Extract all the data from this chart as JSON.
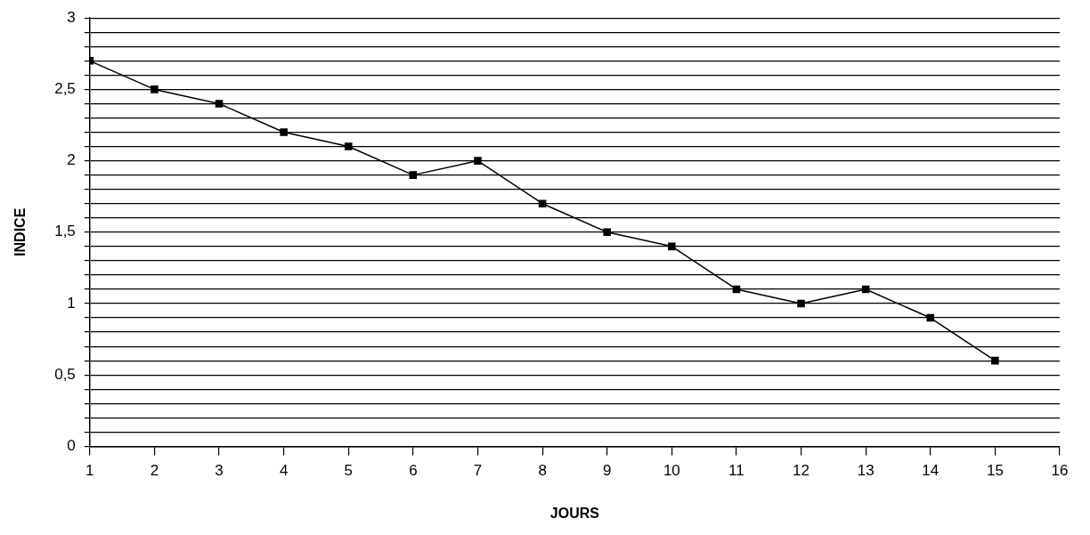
{
  "chart_data": {
    "type": "line",
    "xlabel": "JOURS",
    "ylabel": "INDICE",
    "x": [
      1,
      2,
      3,
      4,
      5,
      6,
      7,
      8,
      9,
      10,
      11,
      12,
      13,
      14,
      15
    ],
    "series": [
      {
        "color": "#000000",
        "values": [
          2.7,
          2.5,
          2.4,
          2.2,
          2.1,
          1.9,
          2.0,
          1.7,
          1.5,
          1.4,
          1.1,
          1.0,
          1.1,
          0.9,
          0.6
        ]
      }
    ],
    "xlim": [
      1,
      16
    ],
    "xticks": [
      1,
      2,
      3,
      4,
      5,
      6,
      7,
      8,
      9,
      10,
      11,
      12,
      13,
      14,
      15,
      16
    ],
    "ylim": [
      0,
      3
    ],
    "yticks": [
      0,
      {
        "value": 0.1,
        "label": null
      },
      {
        "value": 0.2,
        "label": null
      },
      {
        "value": 0.3,
        "label": null
      },
      {
        "value": 0.4,
        "label": null
      },
      {
        "value": 0.5,
        "label": "0,5"
      },
      {
        "value": 0.6,
        "label": null
      },
      {
        "value": 0.7,
        "label": null
      },
      {
        "value": 0.8,
        "label": null
      },
      {
        "value": 0.9,
        "label": null
      },
      1,
      {
        "value": 1.1,
        "label": null
      },
      {
        "value": 1.2,
        "label": null
      },
      {
        "value": 1.3,
        "label": null
      },
      {
        "value": 1.4,
        "label": null
      },
      {
        "value": 1.5,
        "label": "1,5"
      },
      {
        "value": 1.6,
        "label": null
      },
      {
        "value": 1.7,
        "label": null
      },
      {
        "value": 1.8,
        "label": null
      },
      {
        "value": 1.9,
        "label": null
      },
      2,
      {
        "value": 2.1,
        "label": null
      },
      {
        "value": 2.2,
        "label": null
      },
      {
        "value": 2.3,
        "label": null
      },
      {
        "value": 2.4,
        "label": null
      },
      {
        "value": 2.5,
        "label": "2,5"
      },
      {
        "value": 2.6,
        "label": null
      },
      {
        "value": 2.7,
        "label": null
      },
      {
        "value": 2.8,
        "label": null
      },
      {
        "value": 2.9,
        "label": null
      },
      3
    ],
    "grid": "y",
    "marker": "square",
    "line_style": "solid",
    "legend": false
  }
}
